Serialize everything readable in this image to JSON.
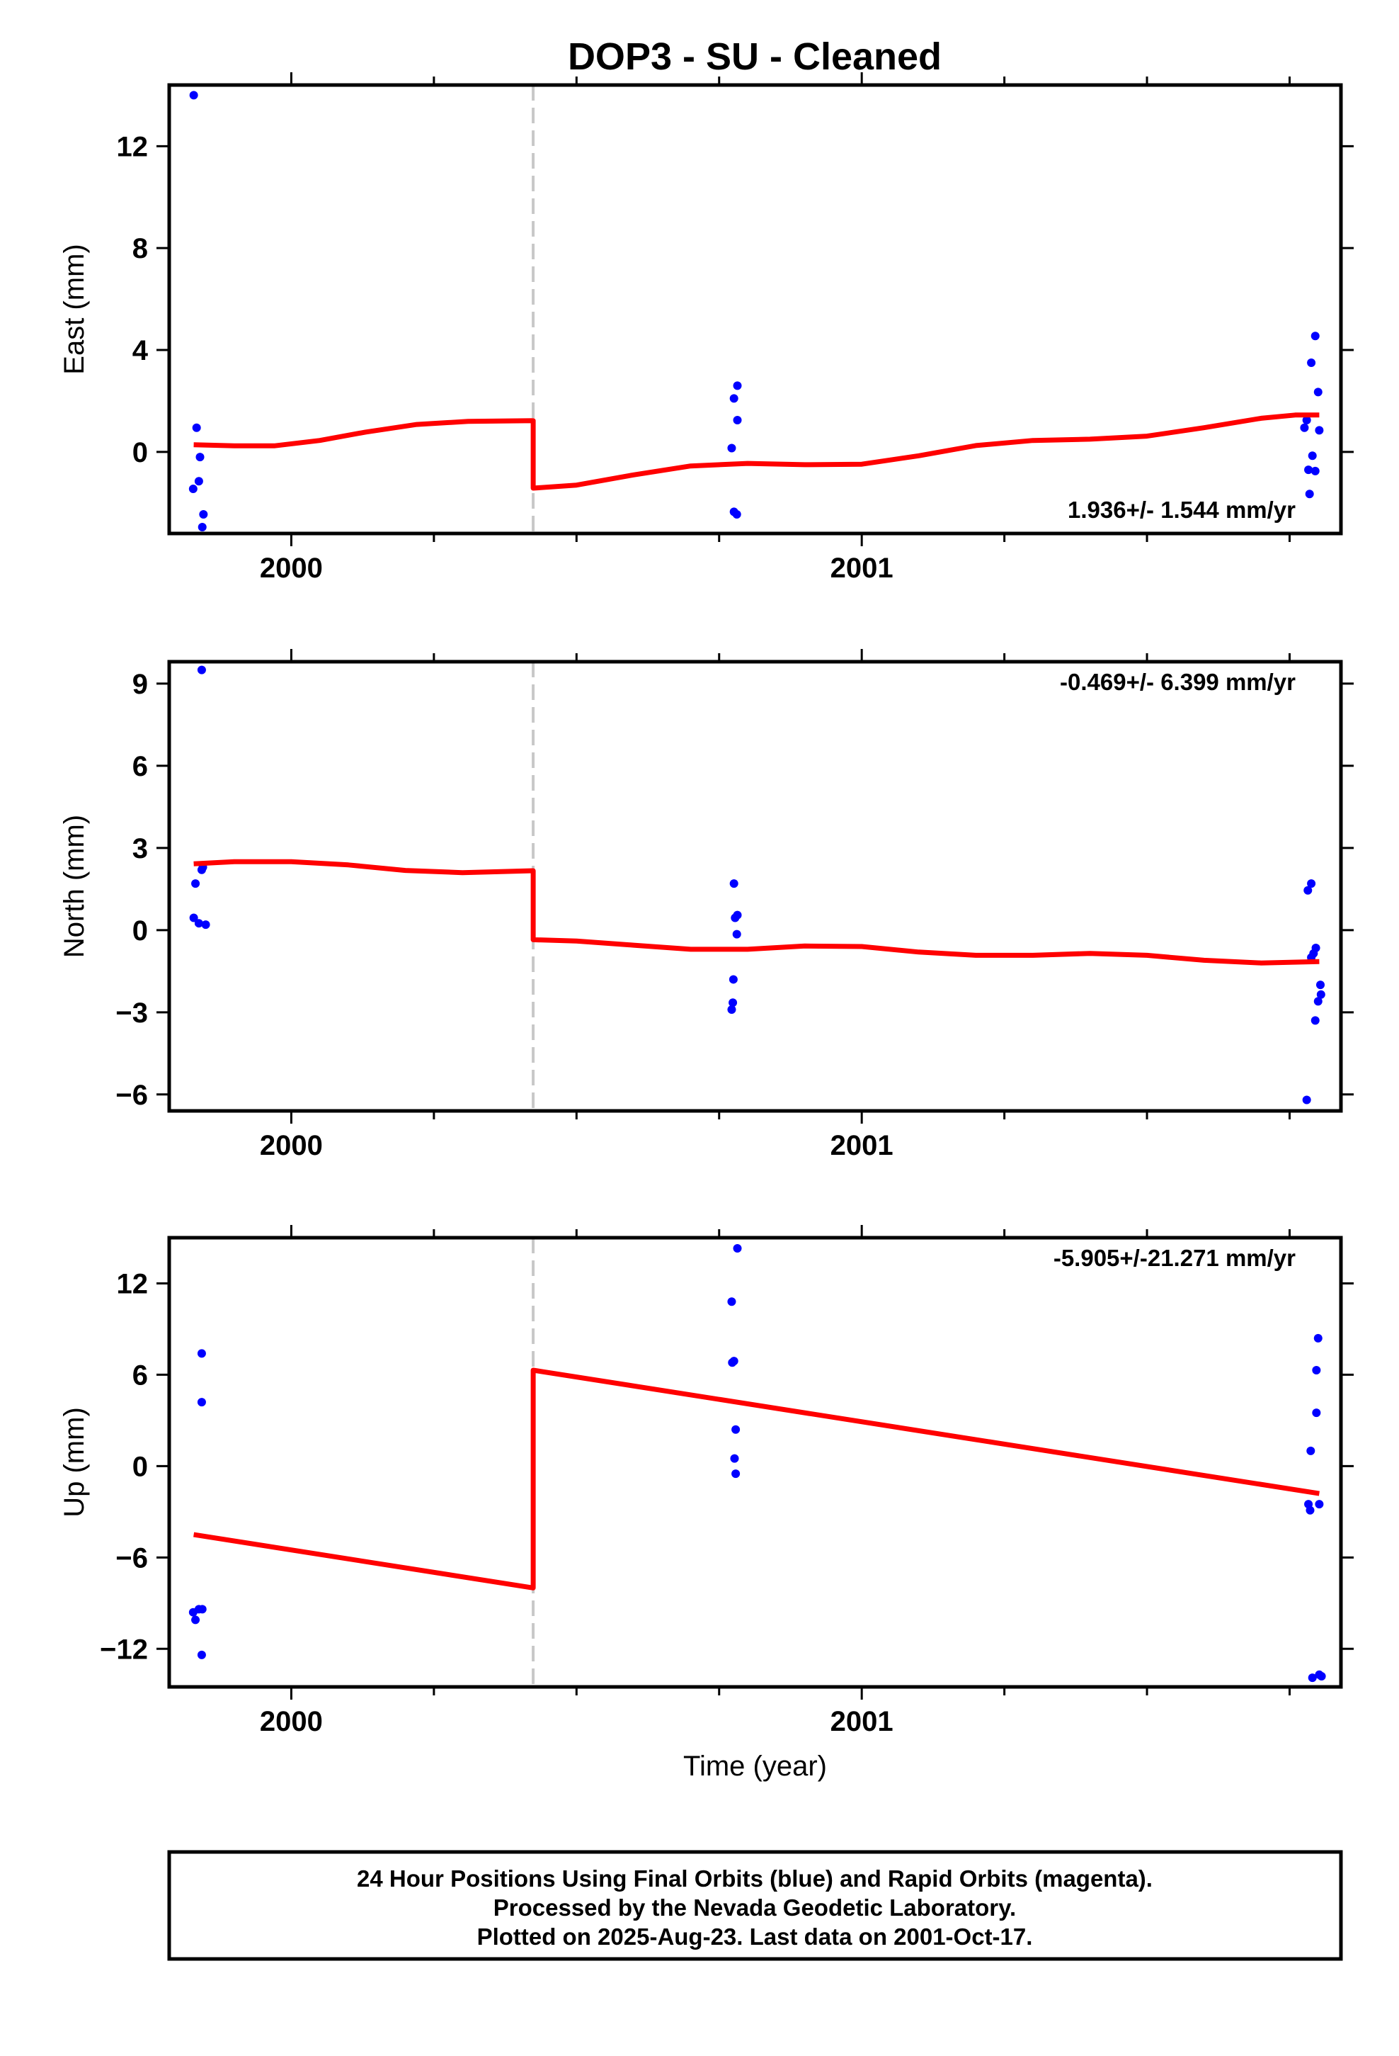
{
  "title": "DOP3  - SU - Cleaned",
  "footer": {
    "lines": [
      "24 Hour Positions Using Final Orbits (blue) and Rapid Orbits (magenta).",
      "Processed by the Nevada Geodetic Laboratory.",
      "Plotted on 2025-Aug-23. Last data on 2001-Oct-17."
    ]
  },
  "colors": {
    "data": "#0000ff",
    "model": "#ff0000",
    "break": "#c8c8c8",
    "frame": "#000000"
  },
  "chart_data": [
    {
      "type": "scatter",
      "ylabel": "East (mm)",
      "xlabel": "",
      "rate": "1.936+/- 1.544 mm/yr",
      "xlim": [
        1999.786,
        2001.84
      ],
      "ylim": [
        -3.2,
        14.4
      ],
      "yticks": [
        0,
        4,
        8,
        12
      ],
      "xticks": [
        2000,
        2001
      ],
      "break_x": 2000.424,
      "points": [
        [
          1999.829,
          14.0
        ],
        [
          1999.834,
          0.95
        ],
        [
          1999.828,
          -1.45
        ],
        [
          1999.838,
          -1.15
        ],
        [
          1999.84,
          -0.2
        ],
        [
          1999.846,
          -2.45
        ],
        [
          1999.844,
          -2.95
        ],
        [
          2000.772,
          0.15
        ],
        [
          2000.776,
          2.1
        ],
        [
          2000.782,
          2.6
        ],
        [
          2000.782,
          1.25
        ],
        [
          2000.776,
          -2.35
        ],
        [
          2000.781,
          -2.45
        ],
        [
          2001.776,
          0.95
        ],
        [
          2001.78,
          1.25
        ],
        [
          2001.788,
          3.5
        ],
        [
          2001.795,
          4.55
        ],
        [
          2001.8,
          2.35
        ],
        [
          2001.79,
          -0.15
        ],
        [
          2001.783,
          -0.7
        ],
        [
          2001.795,
          -0.75
        ],
        [
          2001.785,
          -1.65
        ],
        [
          2001.802,
          0.85
        ]
      ],
      "model": [
        [
          1999.829,
          0.28
        ],
        [
          1999.9,
          0.24
        ],
        [
          1999.97,
          0.24
        ],
        [
          2000.05,
          0.45
        ],
        [
          2000.13,
          0.78
        ],
        [
          2000.22,
          1.08
        ],
        [
          2000.31,
          1.2
        ],
        [
          2000.424,
          1.23
        ],
        [
          2000.424,
          -1.42
        ],
        [
          2000.5,
          -1.3
        ],
        [
          2000.6,
          -0.9
        ],
        [
          2000.7,
          -0.55
        ],
        [
          2000.8,
          -0.45
        ],
        [
          2000.9,
          -0.5
        ],
        [
          2001.0,
          -0.48
        ],
        [
          2001.1,
          -0.15
        ],
        [
          2001.2,
          0.25
        ],
        [
          2001.3,
          0.45
        ],
        [
          2001.4,
          0.5
        ],
        [
          2001.5,
          0.62
        ],
        [
          2001.6,
          0.95
        ],
        [
          2001.7,
          1.32
        ],
        [
          2001.76,
          1.45
        ],
        [
          2001.802,
          1.45
        ]
      ]
    },
    {
      "type": "scatter",
      "ylabel": "North (mm)",
      "xlabel": "",
      "rate": "-0.469+/- 6.399 mm/yr",
      "xlim": [
        1999.786,
        2001.84
      ],
      "ylim": [
        -6.6,
        9.8
      ],
      "yticks": [
        -6,
        -3,
        0,
        3,
        6,
        9
      ],
      "xticks": [
        2000,
        2001
      ],
      "break_x": 2000.424,
      "points": [
        [
          1999.843,
          9.5
        ],
        [
          1999.829,
          0.45
        ],
        [
          1999.832,
          1.7
        ],
        [
          1999.838,
          0.25
        ],
        [
          1999.843,
          2.2
        ],
        [
          1999.845,
          2.3
        ],
        [
          1999.85,
          0.2
        ],
        [
          2000.776,
          1.7
        ],
        [
          2000.778,
          0.45
        ],
        [
          2000.782,
          0.55
        ],
        [
          2000.781,
          -0.15
        ],
        [
          2000.775,
          -1.8
        ],
        [
          2000.774,
          -2.65
        ],
        [
          2000.772,
          -2.9
        ],
        [
          2001.782,
          1.45
        ],
        [
          2001.788,
          1.7
        ],
        [
          2001.788,
          -1.0
        ],
        [
          2001.796,
          -0.65
        ],
        [
          2001.792,
          -0.85
        ],
        [
          2001.804,
          -2.0
        ],
        [
          2001.805,
          -2.35
        ],
        [
          2001.8,
          -2.6
        ],
        [
          2001.795,
          -3.3
        ],
        [
          2001.78,
          -6.2
        ]
      ],
      "model": [
        [
          1999.829,
          2.42
        ],
        [
          1999.9,
          2.5
        ],
        [
          2000.0,
          2.5
        ],
        [
          2000.1,
          2.38
        ],
        [
          2000.2,
          2.18
        ],
        [
          2000.3,
          2.1
        ],
        [
          2000.424,
          2.17
        ],
        [
          2000.424,
          -0.35
        ],
        [
          2000.5,
          -0.4
        ],
        [
          2000.6,
          -0.55
        ],
        [
          2000.7,
          -0.7
        ],
        [
          2000.8,
          -0.7
        ],
        [
          2000.9,
          -0.58
        ],
        [
          2001.0,
          -0.6
        ],
        [
          2001.1,
          -0.8
        ],
        [
          2001.2,
          -0.92
        ],
        [
          2001.3,
          -0.92
        ],
        [
          2001.4,
          -0.85
        ],
        [
          2001.5,
          -0.92
        ],
        [
          2001.6,
          -1.1
        ],
        [
          2001.7,
          -1.2
        ],
        [
          2001.802,
          -1.15
        ]
      ]
    },
    {
      "type": "scatter",
      "ylabel": "Up (mm)",
      "xlabel": "Time (year)",
      "rate": "-5.905+/-21.271 mm/yr",
      "xlim": [
        1999.786,
        2001.84
      ],
      "ylim": [
        -14.5,
        15.0
      ],
      "yticks": [
        -12,
        -6,
        0,
        6,
        12
      ],
      "xticks": [
        2000,
        2001
      ],
      "break_x": 2000.424,
      "points": [
        [
          1999.843,
          7.4
        ],
        [
          1999.843,
          4.2
        ],
        [
          1999.828,
          -9.6
        ],
        [
          1999.832,
          -10.1
        ],
        [
          1999.838,
          -9.4
        ],
        [
          1999.844,
          -9.4
        ],
        [
          1999.843,
          -12.4
        ],
        [
          2000.772,
          10.8
        ],
        [
          2000.773,
          6.8
        ],
        [
          2000.776,
          6.9
        ],
        [
          2000.782,
          14.3
        ],
        [
          2000.779,
          2.4
        ],
        [
          2000.777,
          0.5
        ],
        [
          2000.779,
          -0.5
        ],
        [
          2001.787,
          1.0
        ],
        [
          2001.8,
          8.4
        ],
        [
          2001.797,
          6.3
        ],
        [
          2001.797,
          3.5
        ],
        [
          2001.783,
          -2.5
        ],
        [
          2001.786,
          -2.9
        ],
        [
          2001.802,
          -2.5
        ],
        [
          2001.79,
          -13.9
        ],
        [
          2001.802,
          -13.7
        ],
        [
          2001.806,
          -13.8
        ]
      ],
      "model": [
        [
          1999.829,
          -4.5
        ],
        [
          2000.424,
          -8.0
        ],
        [
          2000.424,
          6.3
        ],
        [
          2001.802,
          -1.8
        ]
      ]
    }
  ]
}
